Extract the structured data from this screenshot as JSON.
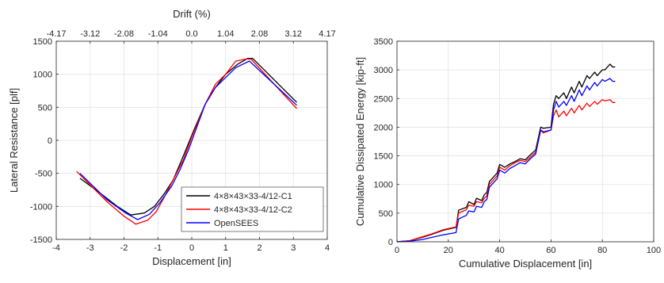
{
  "chart_data": [
    {
      "type": "line",
      "xlabel": "Displacement [in]",
      "ylabel": "Lateral Resistance [plf]",
      "top_xlabel": "Drift (%)",
      "xlim": [
        -4,
        4
      ],
      "ylim": [
        -1500,
        1500
      ],
      "x_ticks": [
        -4,
        -3,
        -2,
        -1,
        0,
        1,
        2,
        3,
        4
      ],
      "y_ticks": [
        -1500,
        -1000,
        -500,
        0,
        500,
        1000,
        1500
      ],
      "top_ticks": [
        "-4.17",
        "-3.12",
        "-2.08",
        "-1.04",
        "0.0",
        "1.04",
        "2.08",
        "3.12",
        "4.17"
      ],
      "grid": true,
      "legend_position": "bottom-right",
      "colors": {
        "c1": "#000000",
        "c2": "#ff0000",
        "opensees": "#0000ff"
      },
      "series": [
        {
          "name": "4×8×43×33-4/12-C1",
          "color": "#000000",
          "x": [
            -3.3,
            -2.7,
            -2.2,
            -1.8,
            -1.4,
            -1.1,
            -0.8,
            -0.55,
            -0.3,
            -0.1,
            0.1,
            0.4,
            0.7,
            1.0,
            1.35,
            1.65,
            1.8,
            3.1
          ],
          "y": [
            -575,
            -800,
            -1000,
            -1130,
            -1100,
            -1000,
            -800,
            -600,
            -300,
            -50,
            200,
            550,
            800,
            1000,
            1150,
            1240,
            1240,
            575
          ]
        },
        {
          "name": "4×8×43×33-4/12-C2",
          "color": "#ff0000",
          "x": [
            -3.4,
            -2.5,
            -2.0,
            -1.65,
            -1.3,
            -1.05,
            -0.8,
            -0.5,
            -0.25,
            0.0,
            0.4,
            0.7,
            1.0,
            1.3,
            1.6,
            1.75,
            3.1
          ],
          "y": [
            -470,
            -930,
            -1150,
            -1270,
            -1210,
            -1080,
            -850,
            -550,
            -300,
            50,
            550,
            850,
            1000,
            1200,
            1230,
            1230,
            480
          ]
        },
        {
          "name": "OpenSEES",
          "color": "#0000ff",
          "x": [
            -3.3,
            -2.5,
            -1.95,
            -1.6,
            -1.25,
            -0.95,
            -0.6,
            -0.35,
            -0.1,
            0.15,
            0.4,
            0.7,
            1.0,
            1.3,
            1.7,
            3.1
          ],
          "y": [
            -500,
            -900,
            -1100,
            -1200,
            -1120,
            -950,
            -700,
            -450,
            -150,
            200,
            550,
            800,
            950,
            1100,
            1200,
            530
          ]
        }
      ]
    },
    {
      "type": "line",
      "xlabel": "Cumulative Displacement [in]",
      "ylabel": "Cumulative Dissipated Energy [kip-ft]",
      "xlim": [
        0,
        100
      ],
      "ylim": [
        0,
        3500
      ],
      "x_ticks": [
        0,
        20,
        40,
        60,
        80,
        100
      ],
      "y_ticks": [
        0,
        500,
        1000,
        1500,
        2000,
        2500,
        3000,
        3500
      ],
      "grid": true,
      "colors": {
        "c1": "#000000",
        "c2": "#ff0000",
        "opensees": "#0000ff"
      },
      "series": [
        {
          "color": "#000000",
          "x": [
            0,
            5,
            10,
            13,
            18,
            23,
            24,
            27,
            28,
            30,
            31,
            33,
            34,
            35,
            36,
            38,
            39,
            40,
            42,
            44,
            46,
            48,
            50,
            52,
            54,
            56,
            57,
            60,
            61,
            62,
            63,
            65,
            66,
            68,
            69,
            71,
            72,
            74,
            75,
            77,
            78,
            80,
            81,
            83,
            84,
            85
          ],
          "y": [
            0,
            20,
            80,
            120,
            200,
            250,
            550,
            600,
            700,
            650,
            760,
            720,
            820,
            860,
            1050,
            1150,
            1200,
            1350,
            1300,
            1360,
            1400,
            1450,
            1430,
            1520,
            1600,
            2000,
            1980,
            2000,
            2400,
            2550,
            2500,
            2600,
            2500,
            2700,
            2600,
            2800,
            2700,
            2900,
            2850,
            2960,
            2900,
            3000,
            3000,
            3100,
            3050,
            3050
          ]
        },
        {
          "color": "#ff0000",
          "x": [
            0,
            5,
            10,
            13,
            18,
            23,
            24,
            27,
            28,
            30,
            31,
            33,
            34,
            35,
            36,
            38,
            39,
            40,
            42,
            44,
            46,
            48,
            50,
            52,
            54,
            56,
            57,
            60,
            61,
            62,
            63,
            65,
            66,
            68,
            69,
            71,
            72,
            74,
            75,
            77,
            78,
            80,
            81,
            83,
            84,
            85
          ],
          "y": [
            0,
            20,
            90,
            130,
            210,
            260,
            500,
            560,
            640,
            620,
            700,
            680,
            760,
            800,
            1000,
            1100,
            1150,
            1300,
            1250,
            1330,
            1380,
            1420,
            1400,
            1480,
            1560,
            1950,
            1900,
            1950,
            2200,
            2300,
            2180,
            2280,
            2200,
            2330,
            2250,
            2380,
            2300,
            2420,
            2360,
            2450,
            2400,
            2480,
            2460,
            2480,
            2430,
            2430
          ]
        },
        {
          "color": "#0000ff",
          "x": [
            0,
            5,
            10,
            13,
            18,
            23,
            24,
            27,
            28,
            30,
            31,
            33,
            34,
            35,
            36,
            38,
            39,
            40,
            42,
            44,
            46,
            48,
            50,
            52,
            54,
            56,
            57,
            60,
            61,
            62,
            63,
            65,
            66,
            68,
            69,
            71,
            72,
            74,
            75,
            77,
            78,
            80,
            81,
            83,
            84,
            85
          ],
          "y": [
            0,
            10,
            40,
            70,
            120,
            160,
            400,
            460,
            540,
            520,
            620,
            600,
            700,
            740,
            950,
            1050,
            1100,
            1250,
            1200,
            1280,
            1330,
            1380,
            1360,
            1450,
            1530,
            1950,
            1920,
            1950,
            2300,
            2450,
            2350,
            2450,
            2380,
            2550,
            2450,
            2650,
            2550,
            2720,
            2650,
            2780,
            2720,
            2830,
            2800,
            2850,
            2800,
            2800
          ]
        }
      ]
    }
  ]
}
